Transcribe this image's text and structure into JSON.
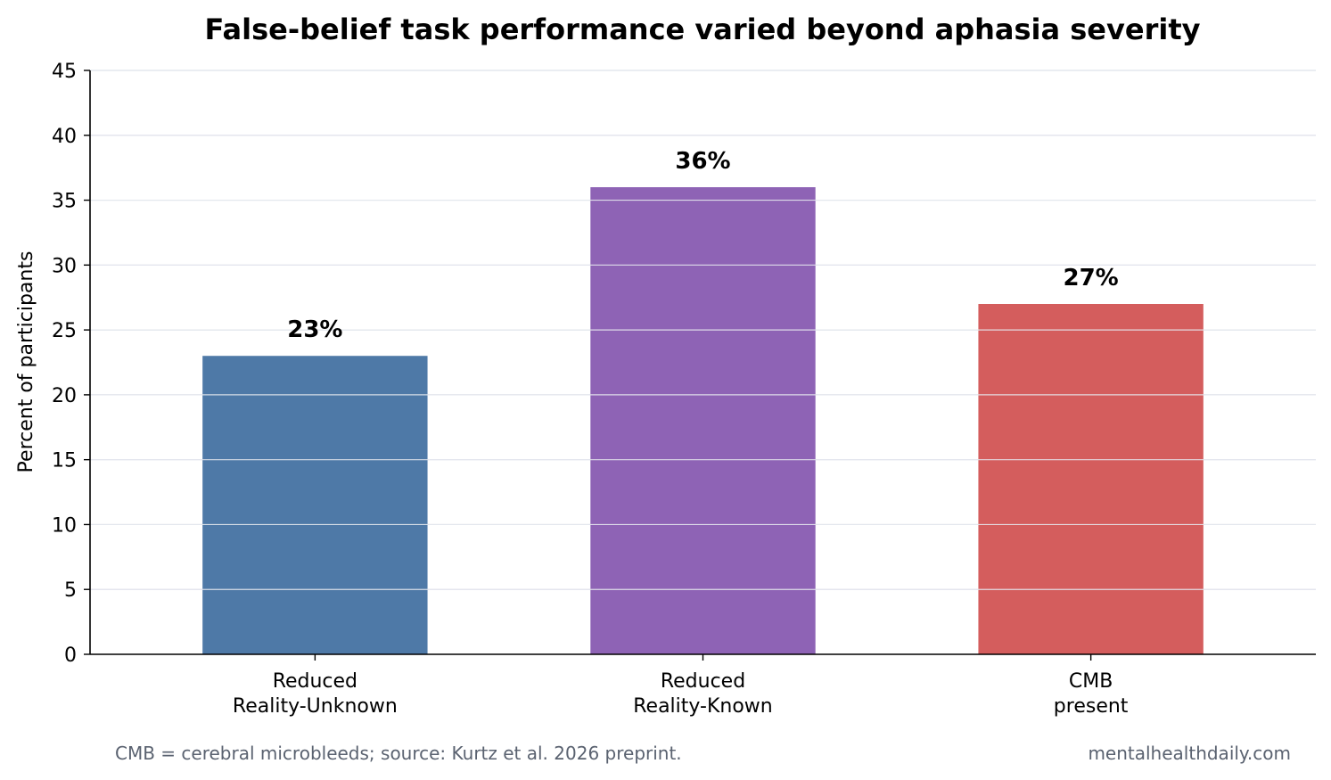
{
  "chart_data": {
    "type": "bar",
    "title": "False-belief task performance varied beyond aphasia severity",
    "xlabel": "",
    "ylabel": "Percent of participants",
    "ylim": [
      0,
      45
    ],
    "yticks": [
      0,
      5,
      10,
      15,
      20,
      25,
      30,
      35,
      40,
      45
    ],
    "grid": "horizontal",
    "categories": [
      [
        "Reduced",
        "Reality-Unknown"
      ],
      [
        "Reduced",
        "Reality-Known"
      ],
      [
        "CMB",
        "present"
      ]
    ],
    "values": [
      23,
      36,
      27
    ],
    "value_labels": [
      "23%",
      "36%",
      "27%"
    ],
    "colors": [
      "#4e79a7",
      "#8e63b5",
      "#d45d5d"
    ],
    "grid_color": "#d8dbe3"
  },
  "footer": {
    "note": "CMB = cerebral microbleeds; source: Kurtz et al. 2026 preprint.",
    "credit": "mentalhealthdaily.com"
  }
}
